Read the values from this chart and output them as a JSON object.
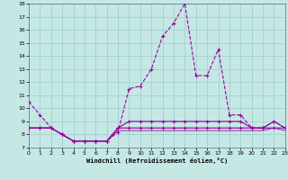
{
  "background_color": "#c5e8e5",
  "grid_color": "#99cccc",
  "line_color": "#990099",
  "x_values": [
    0,
    1,
    2,
    3,
    4,
    5,
    6,
    7,
    8,
    9,
    10,
    11,
    12,
    13,
    14,
    15,
    16,
    17,
    18,
    19,
    20,
    21,
    22,
    23
  ],
  "series1": [
    10.5,
    9.5,
    8.5,
    8.0,
    7.5,
    7.5,
    7.5,
    7.5,
    8.2,
    11.5,
    11.7,
    13.0,
    15.5,
    16.5,
    18.0,
    12.5,
    12.5,
    14.5,
    9.5,
    9.5,
    8.5,
    8.5,
    9.0,
    8.5
  ],
  "series2": [
    8.5,
    8.5,
    8.5,
    8.0,
    7.5,
    7.5,
    7.5,
    7.5,
    8.5,
    8.5,
    8.5,
    8.5,
    8.5,
    8.5,
    8.5,
    8.5,
    8.5,
    8.5,
    8.5,
    8.5,
    8.5,
    8.5,
    8.5,
    8.5
  ],
  "series3": [
    8.5,
    8.5,
    8.5,
    8.0,
    7.5,
    7.5,
    7.5,
    7.5,
    8.3,
    8.3,
    8.3,
    8.3,
    8.3,
    8.3,
    8.3,
    8.3,
    8.3,
    8.3,
    8.3,
    8.3,
    8.3,
    8.3,
    8.5,
    8.3
  ],
  "series4": [
    8.5,
    8.5,
    8.5,
    8.0,
    7.5,
    7.5,
    7.5,
    7.5,
    8.5,
    9.0,
    9.0,
    9.0,
    9.0,
    9.0,
    9.0,
    9.0,
    9.0,
    9.0,
    9.0,
    9.0,
    8.5,
    8.5,
    9.0,
    8.5
  ],
  "xlabel": "Windchill (Refroidissement éolien,°C)",
  "ylim": [
    7,
    18
  ],
  "xlim": [
    0,
    23
  ],
  "yticks": [
    7,
    8,
    9,
    10,
    11,
    12,
    13,
    14,
    15,
    16,
    17,
    18
  ],
  "xticks": [
    0,
    1,
    2,
    3,
    4,
    5,
    6,
    7,
    8,
    9,
    10,
    11,
    12,
    13,
    14,
    15,
    16,
    17,
    18,
    19,
    20,
    21,
    22,
    23
  ]
}
